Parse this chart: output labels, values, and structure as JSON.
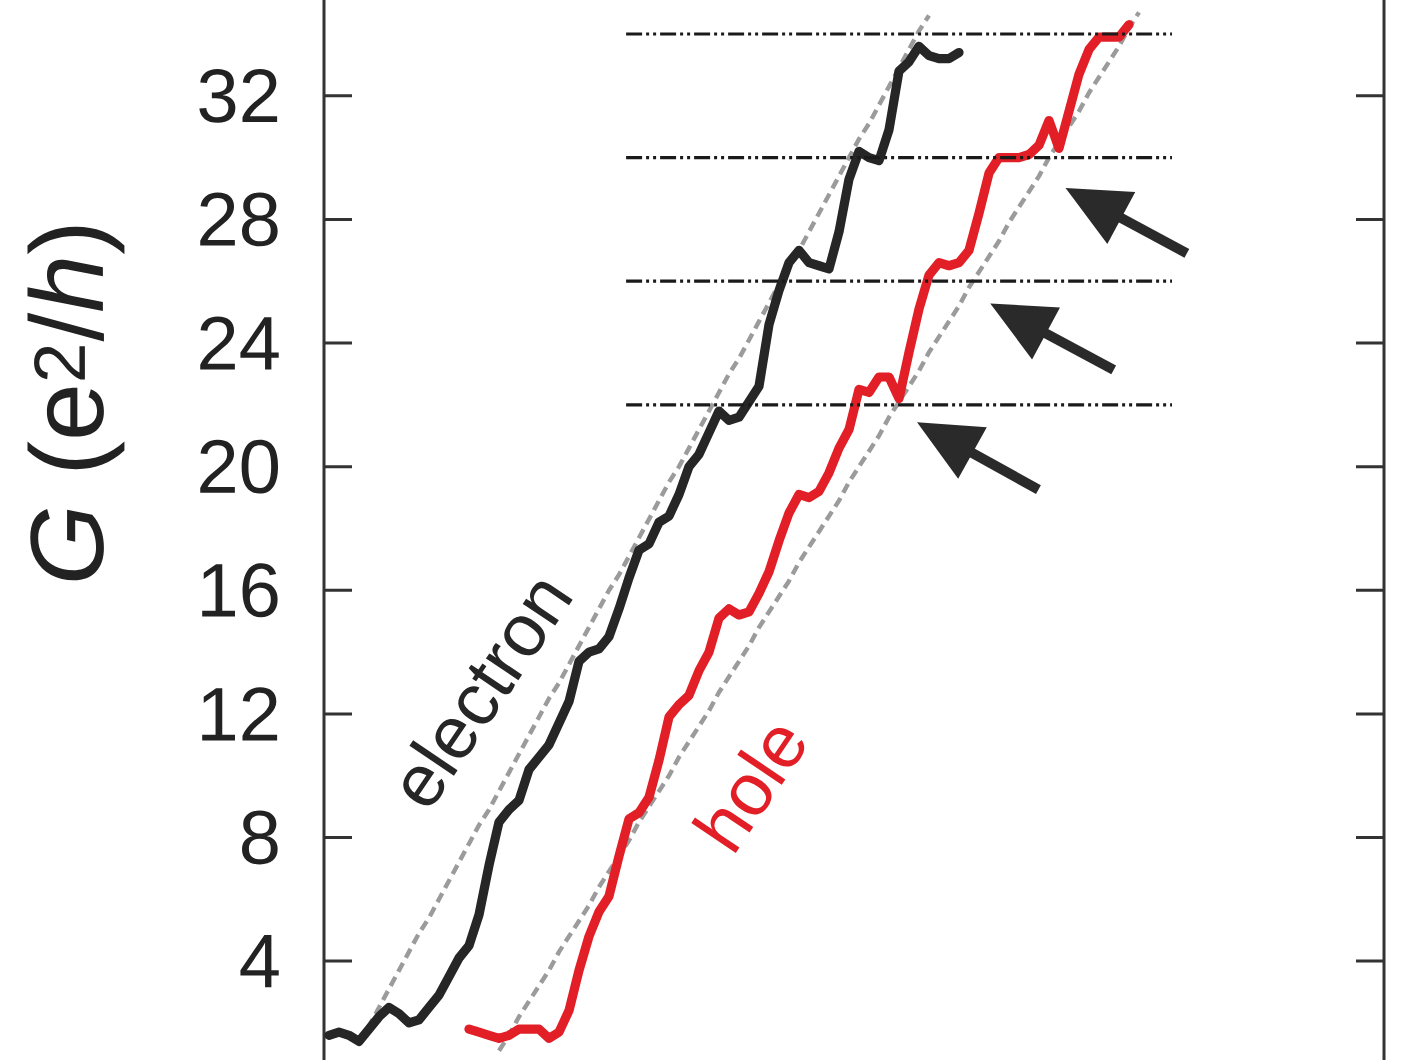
{
  "chart_data": {
    "type": "line",
    "ylabel": "*G* (e$^{2}$/*h*)",
    "categories": [
      null,
      null,
      null,
      null,
      null,
      null,
      null,
      null,
      null,
      null,
      null,
      null,
      null,
      null,
      null,
      null,
      null,
      null,
      null,
      null,
      null,
      null,
      null,
      null,
      null,
      null,
      null,
      null,
      null,
      null,
      null,
      null,
      null,
      null,
      null,
      null,
      null,
      null,
      null,
      null,
      null,
      null,
      null,
      null,
      null,
      null,
      null,
      null,
      null,
      null,
      null,
      null,
      null,
      null,
      null,
      null,
      null,
      null,
      null,
      null,
      null,
      null,
      null,
      null,
      null,
      null,
      null,
      null,
      null,
      null,
      null,
      null,
      null,
      null,
      null,
      null,
      null,
      null,
      null,
      null,
      null,
      null,
      null,
      null,
      null,
      null,
      null,
      null,
      null,
      null,
      null,
      null,
      null,
      null,
      null,
      null,
      null,
      null,
      null,
      null,
      null,
      null,
      null,
      null,
      null,
      null
    ],
    "series": [
      {
        "color": "#9b9b9b",
        "line_style": "dashed",
        "values": [
          null,
          null,
          null,
          1.4,
          1.9,
          2.5,
          3.1,
          3.7,
          4.3,
          4.9,
          5.4,
          6.0,
          6.6,
          7.2,
          7.8,
          8.4,
          8.9,
          9.5,
          10.1,
          10.7,
          11.3,
          11.9,
          12.5,
          13.0,
          13.6,
          14.2,
          14.8,
          15.4,
          16.0,
          16.5,
          17.1,
          17.7,
          18.3,
          18.9,
          19.5,
          20.0,
          20.6,
          21.2,
          21.8,
          22.4,
          23.0,
          23.5,
          24.1,
          24.7,
          25.3,
          25.9,
          26.5,
          27.0,
          27.6,
          28.2,
          28.8,
          29.4,
          30.0,
          30.6,
          31.1,
          31.7,
          32.3,
          32.9,
          33.5,
          34.1,
          34.6,
          null,
          null,
          null,
          null,
          null,
          null,
          null,
          null,
          null,
          null,
          null,
          null,
          null,
          null,
          null,
          null,
          null,
          null,
          null,
          null,
          null,
          null,
          null,
          null,
          null,
          null,
          null,
          null,
          null,
          null,
          null,
          null,
          null,
          null,
          null,
          null,
          null,
          null,
          null,
          null,
          null,
          null,
          null,
          null,
          null
        ]
      },
      {
        "color": "#9b9b9b",
        "line_style": "dashed",
        "values": [
          null,
          null,
          null,
          null,
          null,
          null,
          null,
          null,
          null,
          null,
          null,
          null,
          null,
          null,
          null,
          null,
          null,
          1.1,
          1.6,
          2.2,
          2.7,
          3.2,
          3.7,
          4.3,
          4.8,
          5.3,
          5.8,
          6.4,
          6.9,
          7.4,
          7.9,
          8.5,
          9.0,
          9.5,
          10.0,
          10.6,
          11.1,
          11.6,
          12.1,
          12.7,
          13.2,
          13.7,
          14.2,
          14.8,
          15.3,
          15.8,
          16.3,
          16.9,
          17.4,
          17.9,
          18.4,
          18.9,
          19.5,
          20.0,
          20.5,
          21.0,
          21.6,
          22.1,
          22.6,
          23.1,
          23.7,
          24.2,
          24.7,
          25.2,
          25.8,
          26.3,
          26.8,
          27.3,
          27.9,
          28.4,
          28.9,
          29.4,
          30.0,
          30.5,
          31.0,
          31.5,
          32.1,
          32.6,
          33.1,
          33.6,
          34.2,
          34.7,
          null,
          null,
          null,
          null,
          null,
          null,
          null,
          null,
          null,
          null,
          null,
          null,
          null,
          null,
          null,
          null,
          null,
          null,
          null,
          null,
          null,
          null,
          null,
          null
        ]
      },
      {
        "name": "electron",
        "color": "#262626",
        "values": [
          1.6,
          1.7,
          1.6,
          1.4,
          1.8,
          2.2,
          2.5,
          2.3,
          2.0,
          2.1,
          2.5,
          2.9,
          3.5,
          4.1,
          4.5,
          5.5,
          7.1,
          8.5,
          8.9,
          9.2,
          10.2,
          10.6,
          11.0,
          11.7,
          12.4,
          13.7,
          14.0,
          14.1,
          14.5,
          15.4,
          16.4,
          17.3,
          17.5,
          18.2,
          18.4,
          19.1,
          20.0,
          20.4,
          21.1,
          21.8,
          21.5,
          21.6,
          22.1,
          22.6,
          24.6,
          25.7,
          26.6,
          27.0,
          26.6,
          26.5,
          26.4,
          27.6,
          29.3,
          30.2,
          30.0,
          29.9,
          30.9,
          32.8,
          33.1,
          33.6,
          33.3,
          33.2,
          33.2,
          33.4,
          null,
          null,
          null,
          null,
          null,
          null,
          null,
          null,
          null,
          null,
          null,
          null,
          null,
          null,
          null,
          null,
          null,
          null,
          null,
          null,
          null,
          null,
          null,
          null,
          null,
          null,
          null,
          null,
          null,
          null,
          null,
          null,
          null,
          null,
          null,
          null,
          null,
          null,
          null,
          null,
          null,
          null
        ]
      },
      {
        "name": "hole",
        "color": "#e21f26",
        "values": [
          null,
          null,
          null,
          null,
          null,
          null,
          null,
          null,
          null,
          null,
          null,
          null,
          null,
          null,
          1.8,
          1.7,
          1.6,
          1.5,
          1.6,
          1.8,
          1.8,
          1.8,
          1.5,
          1.7,
          2.4,
          3.7,
          4.8,
          5.6,
          6.1,
          7.4,
          8.6,
          8.8,
          9.3,
          10.5,
          11.9,
          12.3,
          12.6,
          13.4,
          14.0,
          15.1,
          15.4,
          15.2,
          15.3,
          15.9,
          16.6,
          17.6,
          18.5,
          19.1,
          19.0,
          19.2,
          19.8,
          20.6,
          21.2,
          22.5,
          22.4,
          22.9,
          22.9,
          22.2,
          23.7,
          25.1,
          26.2,
          26.6,
          26.5,
          26.6,
          27.0,
          28.2,
          29.5,
          30.0,
          30.0,
          30.0,
          30.1,
          30.4,
          31.2,
          30.3,
          31.5,
          32.7,
          33.5,
          33.9,
          33.9,
          33.9,
          34.3,
          null,
          null,
          null,
          null,
          null,
          null,
          null,
          null,
          null,
          null,
          null,
          null,
          null,
          null,
          null,
          null,
          null,
          null,
          null,
          null,
          null,
          null,
          null,
          null,
          null
        ]
      }
    ],
    "ylim": [
      0.8,
      35.1
    ],
    "yticks": [
      4,
      8,
      12,
      16,
      20,
      24,
      28,
      32
    ],
    "tick_labels": "y",
    "ref_lines": [
      {
        "axis": "y",
        "value": 22,
        "color": "#1a1a1a",
        "line_style": "dashed"
      },
      {
        "axis": "y",
        "value": 26,
        "color": "#1a1a1a",
        "line_style": "dashed"
      },
      {
        "axis": "y",
        "value": 30,
        "color": "#1a1a1a",
        "line_style": "dashed"
      },
      {
        "axis": "y",
        "value": 34,
        "color": "#1a1a1a",
        "line_style": "dashed"
      }
    ]
  }
}
